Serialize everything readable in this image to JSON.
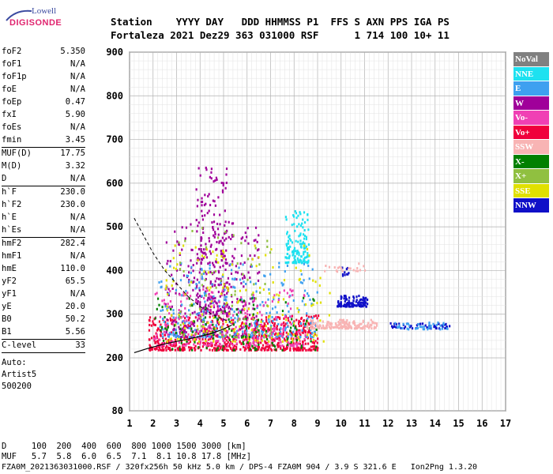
{
  "logo": {
    "top": "Lowell",
    "bottom": "DIGISONDE"
  },
  "header": {
    "line1": "Station    YYYY DAY   DDD HHMMSS P1  FFS S AXN PPS IGA PS",
    "line2": "Fortaleza 2021 Dez29 363 031000 RSF      1 714 100 10+ 11"
  },
  "params": [
    {
      "label": "foF2",
      "value": "5.350"
    },
    {
      "label": "foF1",
      "value": "N/A"
    },
    {
      "label": "foF1p",
      "value": "N/A"
    },
    {
      "label": "foE",
      "value": "N/A"
    },
    {
      "label": "foEp",
      "value": "0.47"
    },
    {
      "label": "fxI",
      "value": "5.90"
    },
    {
      "label": "foEs",
      "value": "N/A"
    },
    {
      "label": "fmin",
      "value": "3.45"
    },
    {
      "sep": true
    },
    {
      "label": "MUF(D)",
      "value": "17.75"
    },
    {
      "label": "M(D)",
      "value": "3.32"
    },
    {
      "label": "D",
      "value": "N/A"
    },
    {
      "sep": true
    },
    {
      "label": "h`F",
      "value": "230.0"
    },
    {
      "label": "h`F2",
      "value": "230.0"
    },
    {
      "label": "h`E",
      "value": "N/A"
    },
    {
      "label": "h`Es",
      "value": "N/A"
    },
    {
      "sep": true
    },
    {
      "label": "hmF2",
      "value": "282.4"
    },
    {
      "label": "hmF1",
      "value": "N/A"
    },
    {
      "label": "hmE",
      "value": "110.0"
    },
    {
      "label": "yF2",
      "value": "65.5"
    },
    {
      "label": "yF1",
      "value": "N/A"
    },
    {
      "label": "yE",
      "value": "20.0"
    },
    {
      "label": "B0",
      "value": "50.2"
    },
    {
      "label": "B1",
      "value": "5.56"
    },
    {
      "sep": true
    },
    {
      "label": "C-level",
      "value": "33"
    },
    {
      "sep": true
    }
  ],
  "auto": [
    "Auto:",
    "Artist5",
    "500200"
  ],
  "legend": [
    {
      "label": "NoVal",
      "color": "#808080"
    },
    {
      "label": "NNE",
      "color": "#1ee1f0"
    },
    {
      "label": "E",
      "color": "#3ea0f0"
    },
    {
      "label": "W",
      "color": "#a0009a"
    },
    {
      "label": "Vo-",
      "color": "#f040b4"
    },
    {
      "label": "Vo+",
      "color": "#f0003c"
    },
    {
      "label": "SSW",
      "color": "#f8b4b4"
    },
    {
      "label": "X-",
      "color": "#008000"
    },
    {
      "label": "X+",
      "color": "#90c040"
    },
    {
      "label": "SSE",
      "color": "#e0e000"
    },
    {
      "label": "NNW",
      "color": "#1010c8"
    }
  ],
  "footer": {
    "d_line": "D     100  200  400  600  800 1000 1500 3000 [km]",
    "muf_line": "MUF   5.7  5.8  6.0  6.5  7.1  8.1 10.8 17.8 [MHz]",
    "file_line": "FZA0M_2021363031000.RSF / 320fx256h 50 kHz 5.0 km / DPS-4 FZA0M 904 / 3.9 S 321.6 E   Ion2Png 1.3.20"
  },
  "chart_data": {
    "type": "scatter",
    "x_ticks": [
      "1",
      "2",
      "3",
      "4",
      "5",
      "6",
      "7",
      "8",
      "9",
      "10",
      "11",
      "12",
      "13",
      "14",
      "15",
      "16",
      "17"
    ],
    "y_ticks": [
      "80",
      "200",
      "300",
      "400",
      "500",
      "600",
      "700",
      "800",
      "900"
    ],
    "xlim": [
      1,
      17
    ],
    "ylim": [
      80,
      900
    ],
    "grid": true,
    "legend_position": "right",
    "profile_curve": {
      "x": [
        1.2,
        1.6,
        2.0,
        2.5,
        3.0,
        3.5,
        4.0,
        4.5,
        5.0,
        5.3
      ],
      "y": [
        520,
        480,
        440,
        400,
        370,
        340,
        318,
        300,
        288,
        282
      ]
    },
    "trace_curve": {
      "x": [
        1.2,
        1.8,
        2.5,
        3.2,
        3.9,
        4.5,
        5.0,
        5.35
      ],
      "y": [
        212,
        222,
        232,
        240,
        248,
        256,
        266,
        275
      ]
    },
    "echo_clusters": [
      {
        "color": "#f0003c",
        "x": [
          1.8,
          9.0
        ],
        "y": [
          220,
          300
        ],
        "n": 700
      },
      {
        "color": "#a0009a",
        "x": [
          2.5,
          6.5
        ],
        "y": [
          250,
          520
        ],
        "n": 300
      },
      {
        "color": "#a0009a",
        "x": [
          3.8,
          5.2
        ],
        "y": [
          300,
          640
        ],
        "n": 220
      },
      {
        "color": "#1ee1f0",
        "x": [
          7.6,
          8.6
        ],
        "y": [
          420,
          540
        ],
        "n": 140
      },
      {
        "color": "#3ea0f0",
        "x": [
          2.2,
          9.0
        ],
        "y": [
          250,
          420
        ],
        "n": 300
      },
      {
        "color": "#f040b4",
        "x": [
          2.0,
          8.5
        ],
        "y": [
          230,
          360
        ],
        "n": 260
      },
      {
        "color": "#e0e000",
        "x": [
          2.5,
          9.5
        ],
        "y": [
          240,
          460
        ],
        "n": 180
      },
      {
        "color": "#008000",
        "x": [
          2.0,
          9.0
        ],
        "y": [
          220,
          340
        ],
        "n": 120
      },
      {
        "color": "#90c040",
        "x": [
          3.0,
          7.0
        ],
        "y": [
          250,
          500
        ],
        "n": 80
      },
      {
        "color": "#f8b4b4",
        "x": [
          8.5,
          11.5
        ],
        "y": [
          270,
          290
        ],
        "n": 160
      },
      {
        "color": "#1010c8",
        "x": [
          9.8,
          11.1
        ],
        "y": [
          320,
          345
        ],
        "n": 110
      },
      {
        "color": "#1010c8",
        "x": [
          12.0,
          14.6
        ],
        "y": [
          270,
          282
        ],
        "n": 50
      },
      {
        "color": "#3ea0f0",
        "x": [
          12.0,
          14.6
        ],
        "y": [
          268,
          284
        ],
        "n": 40
      },
      {
        "color": "#1010c8",
        "x": [
          10.0,
          10.3
        ],
        "y": [
          390,
          410
        ],
        "n": 10
      },
      {
        "color": "#f8b4b4",
        "x": [
          9.0,
          11.0
        ],
        "y": [
          400,
          420
        ],
        "n": 20
      }
    ]
  }
}
